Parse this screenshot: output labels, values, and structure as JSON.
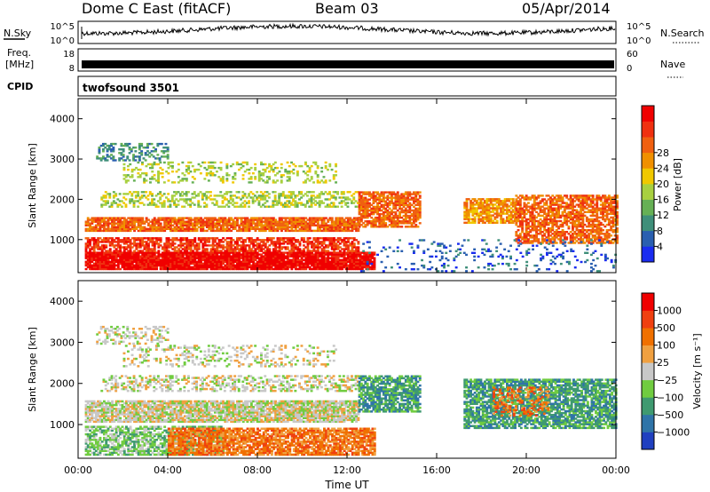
{
  "header": {
    "station": "Dome C East (fitACF)",
    "beam": "Beam 03",
    "date": "05/Apr/2014"
  },
  "panels": {
    "nsky": {
      "left_label": "N.Sky",
      "right_label": "N.Search",
      "left_ticks": [
        "10^5",
        "10^0"
      ],
      "right_ticks": [
        "10^5",
        "10^0"
      ]
    },
    "freq": {
      "left_label_1": "Freq.",
      "left_label_2": "[MHz]",
      "right_label": "Nave",
      "left_ticks": [
        "18",
        "8"
      ],
      "right_ticks": [
        "60",
        "0"
      ]
    },
    "cpid": {
      "label": "CPID",
      "value": "twofsound 3501"
    }
  },
  "chart_data": [
    {
      "type": "heatmap",
      "title": "",
      "xlabel": "",
      "ylabel": "Slant Range [km]",
      "x_ticks": [
        "00:00",
        "04:00",
        "08:00",
        "12:00",
        "16:00",
        "20:00",
        "00:00"
      ],
      "y_ticks": [
        1000,
        2000,
        3000,
        4000
      ],
      "xlim_hours": [
        0,
        24
      ],
      "ylim_km": [
        180,
        4500
      ],
      "colorbar": {
        "label": "Power [dB]",
        "ticks": [
          "4",
          "8",
          "12",
          "16",
          "20",
          "24",
          "28"
        ],
        "colors": [
          "#1a2cf0",
          "#2a5fb0",
          "#3f8f7a",
          "#66b055",
          "#a8d040",
          "#f0c800",
          "#f09000",
          "#f06010",
          "#f03010",
          "#f00000"
        ]
      },
      "regions": [
        {
          "t0": 0.3,
          "t1": 13.2,
          "r0": 250,
          "r1": 700,
          "level": 9,
          "density": 0.95
        },
        {
          "t0": 0.3,
          "t1": 12.5,
          "r0": 700,
          "r1": 1050,
          "level": 8,
          "density": 0.7
        },
        {
          "t0": 0.3,
          "t1": 12.5,
          "r0": 1200,
          "r1": 1550,
          "level": 7,
          "density": 0.85
        },
        {
          "t0": 1.0,
          "t1": 12.5,
          "r0": 1800,
          "r1": 2200,
          "level": 4,
          "density": 0.45
        },
        {
          "t0": 2.0,
          "t1": 11.5,
          "r0": 2400,
          "r1": 2900,
          "level": 4,
          "density": 0.25
        },
        {
          "t0": 0.8,
          "t1": 4.0,
          "r0": 2950,
          "r1": 3400,
          "level": 2,
          "density": 0.35
        },
        {
          "t0": 12.5,
          "t1": 15.2,
          "r0": 1300,
          "r1": 2200,
          "level": 7,
          "density": 0.75
        },
        {
          "t0": 17.2,
          "t1": 19.5,
          "r0": 1400,
          "r1": 2000,
          "level": 6,
          "density": 0.75
        },
        {
          "t0": 19.5,
          "t1": 24.0,
          "r0": 900,
          "r1": 2100,
          "level": 7,
          "density": 0.7
        },
        {
          "t0": 12.5,
          "t1": 24.0,
          "r0": 200,
          "r1": 1000,
          "level": 1,
          "density": 0.12
        }
      ]
    },
    {
      "type": "heatmap",
      "title": "",
      "xlabel": "Time UT",
      "ylabel": "Slant Range [km]",
      "x_ticks": [
        "00:00",
        "04:00",
        "08:00",
        "12:00",
        "16:00",
        "20:00",
        "00:00"
      ],
      "y_ticks": [
        1000,
        2000,
        3000,
        4000
      ],
      "xlim_hours": [
        0,
        24
      ],
      "ylim_km": [
        180,
        4500
      ],
      "colorbar": {
        "label": "Velocity [m s⁻¹]",
        "ticks": [
          "1000",
          "500",
          "100",
          "25",
          "−25",
          "−100",
          "−500",
          "−1000"
        ],
        "colors": [
          "#2040c0",
          "#2f74a8",
          "#3f9a70",
          "#70cc40",
          "#c8c8c8",
          "#f0a040",
          "#f07000",
          "#f04010",
          "#f00000"
        ]
      },
      "regions": [
        {
          "t0": 0.3,
          "t1": 6.5,
          "r0": 250,
          "r1": 950,
          "level": 3,
          "density": 0.7
        },
        {
          "t0": 4.0,
          "t1": 13.2,
          "r0": 250,
          "r1": 900,
          "level": 6,
          "density": 0.8
        },
        {
          "t0": 0.3,
          "t1": 12.5,
          "r0": 1050,
          "r1": 1550,
          "level": 4,
          "density": 0.85
        },
        {
          "t0": 1.0,
          "t1": 12.5,
          "r0": 1800,
          "r1": 2200,
          "level": 4,
          "density": 0.4
        },
        {
          "t0": 2.0,
          "t1": 11.5,
          "r0": 2400,
          "r1": 2900,
          "level": 4,
          "density": 0.25
        },
        {
          "t0": 0.8,
          "t1": 4.0,
          "r0": 2950,
          "r1": 3400,
          "level": 4,
          "density": 0.35
        },
        {
          "t0": 12.5,
          "t1": 15.2,
          "r0": 1300,
          "r1": 2200,
          "level": 2,
          "density": 0.75
        },
        {
          "t0": 17.2,
          "t1": 24.0,
          "r0": 900,
          "r1": 2100,
          "level": 2,
          "density": 0.75
        },
        {
          "t0": 18.5,
          "t1": 21.0,
          "r0": 1200,
          "r1": 1900,
          "level": 6,
          "density": 0.35
        }
      ]
    }
  ]
}
